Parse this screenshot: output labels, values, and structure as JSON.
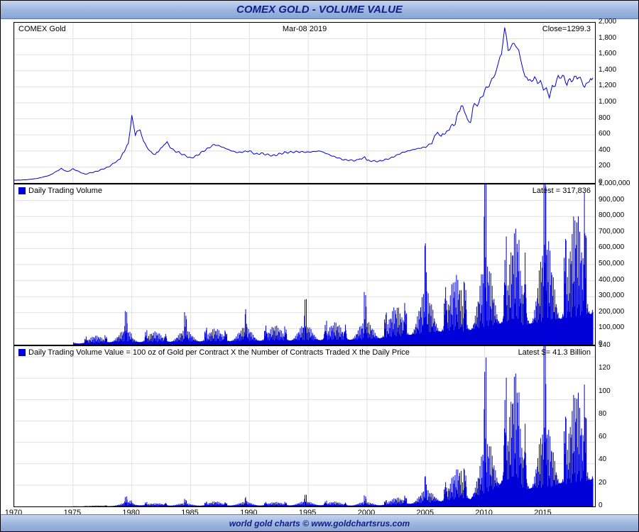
{
  "title": "COMEX GOLD - VOLUME VALUE",
  "footer": "world gold charts © www.goldchartsrus.com",
  "xaxis": {
    "min": 1970,
    "max": 2019.5,
    "ticks": [
      1970,
      1975,
      1980,
      1985,
      1990,
      1995,
      2000,
      2005,
      2010,
      2015
    ]
  },
  "panel1": {
    "label_left": "COMEX Gold",
    "label_center": "Mar-08  2019",
    "label_right": "Close=1299.3",
    "type": "line",
    "line_color": "#0000d8",
    "ylim": [
      0,
      2000
    ],
    "ytick_step": 200,
    "grid_color": "#e0e0e0",
    "series": [
      [
        1970,
        35
      ],
      [
        1971,
        40
      ],
      [
        1972,
        58
      ],
      [
        1973,
        95
      ],
      [
        1974,
        180
      ],
      [
        1974.5,
        140
      ],
      [
        1975,
        175
      ],
      [
        1976,
        110
      ],
      [
        1977,
        145
      ],
      [
        1978,
        200
      ],
      [
        1979,
        300
      ],
      [
        1979.7,
        500
      ],
      [
        1980,
        850
      ],
      [
        1980.3,
        600
      ],
      [
        1980.7,
        680
      ],
      [
        1981,
        520
      ],
      [
        1981.5,
        400
      ],
      [
        1982,
        350
      ],
      [
        1982.7,
        480
      ],
      [
        1983,
        500
      ],
      [
        1983.5,
        410
      ],
      [
        1984,
        380
      ],
      [
        1985,
        310
      ],
      [
        1985.5,
        340
      ],
      [
        1986,
        390
      ],
      [
        1987,
        480
      ],
      [
        1987.5,
        460
      ],
      [
        1988,
        430
      ],
      [
        1988.5,
        400
      ],
      [
        1989,
        380
      ],
      [
        1990,
        400
      ],
      [
        1990.5,
        360
      ],
      [
        1991,
        370
      ],
      [
        1992,
        340
      ],
      [
        1993,
        380
      ],
      [
        1994,
        390
      ],
      [
        1995,
        385
      ],
      [
        1996,
        400
      ],
      [
        1997,
        340
      ],
      [
        1998,
        290
      ],
      [
        1999,
        280
      ],
      [
        1999.8,
        320
      ],
      [
        2000,
        280
      ],
      [
        2001,
        270
      ],
      [
        2002,
        310
      ],
      [
        2003,
        380
      ],
      [
        2004,
        420
      ],
      [
        2005,
        450
      ],
      [
        2005.5,
        500
      ],
      [
        2006,
        650
      ],
      [
        2006.3,
        580
      ],
      [
        2007,
        680
      ],
      [
        2007.5,
        750
      ],
      [
        2008,
        980
      ],
      [
        2008.4,
        850
      ],
      [
        2008.8,
        730
      ],
      [
        2009,
        950
      ],
      [
        2009.5,
        1000
      ],
      [
        2010,
        1150
      ],
      [
        2010.5,
        1250
      ],
      [
        2011,
        1400
      ],
      [
        2011.3,
        1550
      ],
      [
        2011.7,
        1900
      ],
      [
        2012,
        1650
      ],
      [
        2012.5,
        1750
      ],
      [
        2012.8,
        1680
      ],
      [
        2013,
        1600
      ],
      [
        2013.3,
        1400
      ],
      [
        2013.7,
        1250
      ],
      [
        2014,
        1300
      ],
      [
        2014.5,
        1280
      ],
      [
        2015,
        1200
      ],
      [
        2015.5,
        1100
      ],
      [
        2016,
        1250
      ],
      [
        2016.5,
        1350
      ],
      [
        2017,
        1250
      ],
      [
        2017.5,
        1300
      ],
      [
        2018,
        1330
      ],
      [
        2018.5,
        1200
      ],
      [
        2019,
        1300
      ],
      [
        2019.2,
        1299
      ]
    ]
  },
  "panel2": {
    "label_left": "Daily Trading Volume",
    "label_right": "Latest = 317,836",
    "type": "bar",
    "bar_color": "#0000d8",
    "ylim": [
      0,
      1000000
    ],
    "ytick_step": 100000,
    "grid_color": "#e0e0e0"
  },
  "panel3": {
    "label_left": "Daily Trading Volume Value = 100 oz of Gold per Contract X the Number of Contracts Traded X the Daily Price",
    "label_right": "Latest $= 41.3 Billion",
    "type": "bar",
    "bar_color": "#0000d8",
    "ylim": [
      0,
      150
    ],
    "ytick_step": 20,
    "grid_color": "#e0e0e0",
    "ystart": 0
  },
  "colors": {
    "title_bg_top": "#c5d4f0",
    "title_bg_bot": "#8aa5d5",
    "title_text": "#10208a",
    "chart_bg": "#ffffff",
    "series": "#0000d8",
    "grid": "#e0e0e0",
    "border": "#000000"
  },
  "fontsize": {
    "title": 15,
    "labels": 11,
    "ticks": 10,
    "footer": 12
  }
}
